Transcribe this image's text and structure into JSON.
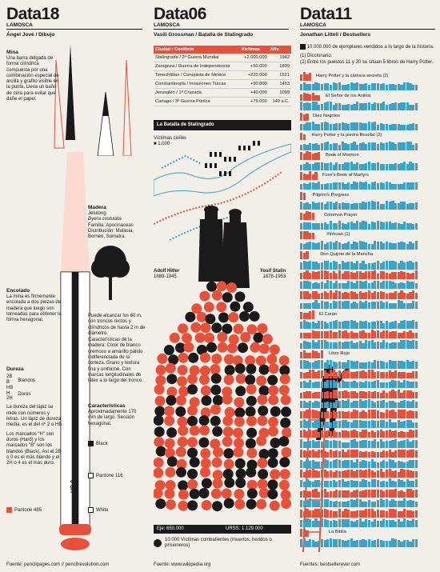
{
  "col1": {
    "title": "Data18",
    "brand": "LAMOSCA",
    "author": "Ángel Jové / Dibujo",
    "mina": {
      "title": "Mina",
      "text": "Una barra delgada de forma cilíndrica compuesta por una combinación especial de arcilla y grafito visible en la punta. Lleva un baño de cera para evitar que dañe el papel."
    },
    "madera": {
      "title": "Madera",
      "l1": "Jelutong",
      "l2": "Dyera costulata",
      "l3": "Familia: Apocinaceas",
      "l4": "Distribución: Malasia, Borneo, Sumatra."
    },
    "encolado": {
      "title": "Encolado",
      "text": "La mina es firmemente encolada a dos piezas de madera que luego son torneadas para obtener la forma hexagonal."
    },
    "tree_text": "Puede alcanzar los 60 m, con troncos rectos y cilíndricos de hasta 2 m de diámetro.",
    "wood_text": "Características de la madera: Color de blanco cremoso a amarillo pálido indiferenciada de la corteza. Grano y textura fina y uniforme. Con marcas longitudinales de látex a lo largo del tronco.",
    "dureza": {
      "title": "Dureza",
      "grades": "2B\nB\nHB\nH\n2H",
      "blandos": "Blandos",
      "duros": "Duros",
      "text1": "La dureza del lápiz se mide con números y letras. Un lápiz de dureza media, es el del nº 2 o HB.",
      "text2": "Los marcados \"H\" son duros (Hard) y los marcados \"B\" son los blandos (Black). Así el 2B o 0 es el más blando y el 2H o 4 es el más duro."
    },
    "caract": {
      "title": "Características",
      "text": "Aproximadamente 170 mm de largo. Sección hexagonal."
    },
    "pencil_label": "HB 2",
    "swatches": {
      "black": "Black",
      "pantone116": "Pantone 116",
      "white": "White",
      "pantone485": "Pantone 485"
    },
    "footer": "Fuente: pencilpages.com // pencilrevolution.com"
  },
  "col2": {
    "title": "Data06",
    "brand": "LAMOSCA",
    "author": "Vasili Grossman / Batalla de Stalingrado",
    "table_headers": [
      "Ciudad / Conflicto",
      "Víctimas",
      "Año"
    ],
    "table_rows": [
      [
        "Stalingrado / 2ª Guerra Mundial",
        "+2.000.000",
        "1942"
      ],
      [
        "Zaragoza / Guerra de Independencia",
        "+50.000",
        "1809"
      ],
      [
        "Tenochtitlan / Conquista de México",
        "+220.000",
        "1521"
      ],
      [
        "Constantinopla / Invasiones Turcas",
        "+90.000",
        "1453"
      ],
      [
        "Jerusalén / 1ª Cruzada",
        "+40.000",
        "1099"
      ],
      [
        "Cartago / 3ª Guerra Púnica",
        "+79.000",
        "149 a.C."
      ]
    ],
    "battle_label": "La Batalla de Stalingrado",
    "victimas_label": "Víctimas civiles",
    "victimas_unit": "1.000",
    "hitler": {
      "name": "Adolf Hitler",
      "years": "1889-1945"
    },
    "stalin": {
      "name": "Yosif Stalin",
      "years": "1878-1953"
    },
    "eje": "Eje: 650.000",
    "urss": "URSS: 1.129.000",
    "skull_legend": "10.000 Víctimas combatientes (muertos, heridos o prisioneros)",
    "footer": "Fuente: www.wikipedia.org"
  },
  "col3": {
    "title": "Data11",
    "brand": "LAMOSCA",
    "author": "Jonathan Littell / Bestsellers",
    "legend_main": "10.000.000 de ejemplares vendidos a lo largo de la historia.",
    "note1": "(1) Diccionario.",
    "note2": "(2) Entre los puestos 11 y 20 se sitúan 5 libros de Harry Potter.",
    "books": [
      "Harry Potter y la cámara secreta (2)",
      "El Señor de los Anillos",
      "Diez Negritos",
      "Harry Potter y la piedra filosofal (2)",
      "Book of Mormon",
      "Foxe's Book of Martyrs",
      "Pilgrim's Progress",
      "Common Prayer",
      "Xinhuan (1)",
      "Don Quijote de la Mancha",
      "El Corán",
      "Libro Rojo",
      "La Biblia"
    ],
    "footer": "Fuentes: bestsellerever.com"
  },
  "colors": {
    "red": "#e8503a",
    "blue": "#3aa3c9",
    "dark": "#1a1a1a",
    "bg": "#f1efe8"
  }
}
